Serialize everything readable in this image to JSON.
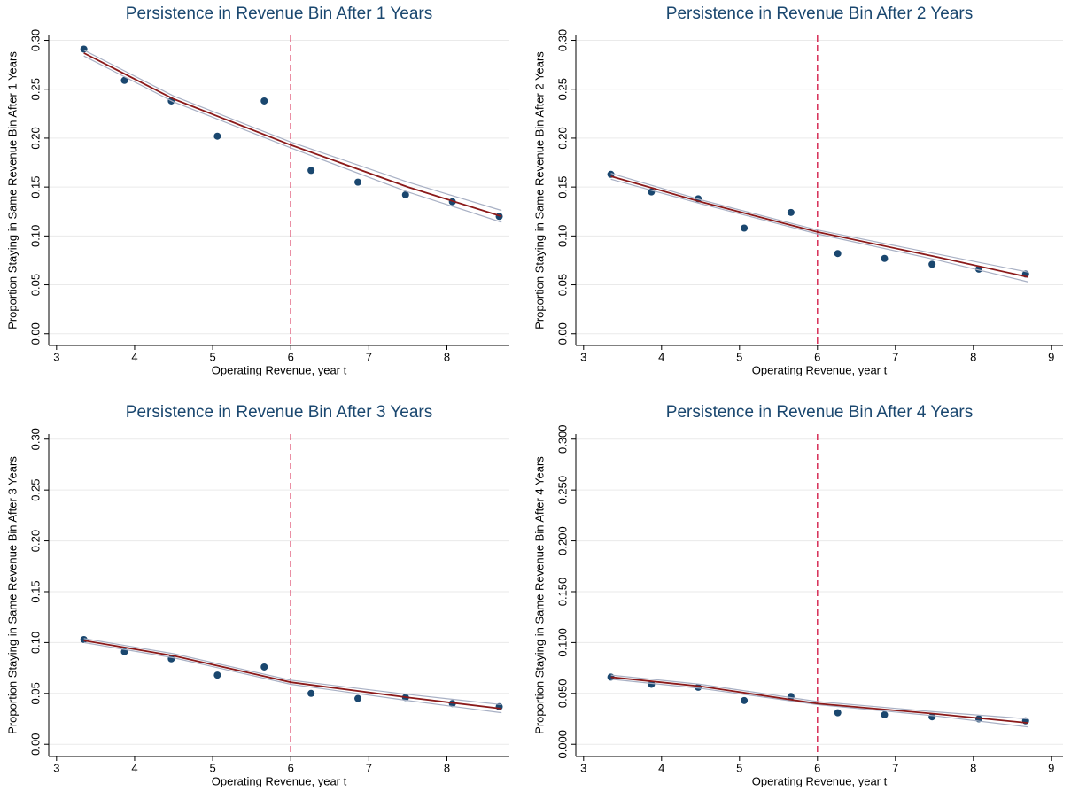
{
  "chart_data": [
    {
      "type": "scatter",
      "title": "Persistence in Revenue Bin After 1 Years",
      "x_label": "Operating Revenue, year t",
      "y_label": "Proportion Staying in Same Revenue Bin After 1 Years",
      "xlim": [
        2.9,
        8.8
      ],
      "ylim": [
        -0.012,
        0.305
      ],
      "xticks": [
        3,
        4,
        5,
        6,
        7,
        8
      ],
      "yticks": [
        {
          "value": 0,
          "label": "0.00"
        },
        {
          "value": 0.05,
          "label": "0.05"
        },
        {
          "value": 0.1,
          "label": "0.10"
        },
        {
          "value": 0.15,
          "label": "0.15"
        },
        {
          "value": 0.2,
          "label": "0.20"
        },
        {
          "value": 0.25,
          "label": "0.25"
        },
        {
          "value": 0.3,
          "label": "0.30"
        }
      ],
      "grid": true,
      "vline": 6,
      "vline_color": "#d62d55",
      "series": [
        {
          "style": "scatter",
          "color": "#1a476f",
          "x": [
            3.35,
            3.87,
            4.47,
            5.06,
            5.66,
            6.26,
            6.86,
            7.47,
            8.07,
            8.67
          ],
          "values": [
            0.291,
            0.259,
            0.238,
            0.202,
            0.238,
            0.167,
            0.155,
            0.142,
            0.135,
            0.12
          ]
        },
        {
          "style": "ci",
          "color": "#a8b0c4",
          "x": [
            3.35,
            4.5,
            6,
            7.5,
            8.7
          ],
          "values": [
            0.29,
            0.243,
            0.196,
            0.155,
            0.126
          ]
        },
        {
          "style": "ci",
          "color": "#a8b0c4",
          "x": [
            3.35,
            4.5,
            6,
            7.5,
            8.7
          ],
          "values": [
            0.284,
            0.237,
            0.19,
            0.145,
            0.114
          ]
        },
        {
          "style": "line",
          "color": "#8b1a1a",
          "x": [
            3.35,
            4.5,
            6,
            7.5,
            8.7
          ],
          "values": [
            0.287,
            0.24,
            0.193,
            0.15,
            0.12
          ]
        }
      ]
    },
    {
      "type": "scatter",
      "title": "Persistence in Revenue Bin After 2 Years",
      "x_label": "Operating Revenue, year t",
      "y_label": "Proportion Staying in Same Revenue Bin After 2 Years",
      "xlim": [
        2.9,
        9.15
      ],
      "ylim": [
        -0.012,
        0.305
      ],
      "xticks": [
        3,
        4,
        5,
        6,
        7,
        8,
        9
      ],
      "yticks": [
        {
          "value": 0,
          "label": "0.00"
        },
        {
          "value": 0.05,
          "label": "0.05"
        },
        {
          "value": 0.1,
          "label": "0.10"
        },
        {
          "value": 0.15,
          "label": "0.15"
        },
        {
          "value": 0.2,
          "label": "0.20"
        },
        {
          "value": 0.25,
          "label": "0.25"
        },
        {
          "value": 0.3,
          "label": "0.30"
        }
      ],
      "grid": true,
      "vline": 6,
      "vline_color": "#d62d55",
      "series": [
        {
          "style": "scatter",
          "color": "#1a476f",
          "x": [
            3.35,
            3.87,
            4.47,
            5.06,
            5.66,
            6.26,
            6.86,
            7.47,
            8.07,
            8.67
          ],
          "values": [
            0.163,
            0.145,
            0.138,
            0.108,
            0.124,
            0.082,
            0.077,
            0.071,
            0.066,
            0.061
          ]
        },
        {
          "style": "ci",
          "color": "#a8b0c4",
          "x": [
            3.35,
            4.5,
            6,
            7.5,
            8.7
          ],
          "values": [
            0.164,
            0.137,
            0.106,
            0.082,
            0.063
          ]
        },
        {
          "style": "ci",
          "color": "#a8b0c4",
          "x": [
            3.35,
            4.5,
            6,
            7.5,
            8.7
          ],
          "values": [
            0.158,
            0.133,
            0.102,
            0.076,
            0.053
          ]
        },
        {
          "style": "line",
          "color": "#8b1a1a",
          "x": [
            3.35,
            4.5,
            6,
            7.5,
            8.7
          ],
          "values": [
            0.161,
            0.135,
            0.104,
            0.079,
            0.058
          ]
        }
      ]
    },
    {
      "type": "scatter",
      "title": "Persistence in Revenue Bin After 3 Years",
      "x_label": "Operating Revenue, year t",
      "y_label": "Proportion Staying in Same Revenue Bin After 3 Years",
      "xlim": [
        2.9,
        8.8
      ],
      "ylim": [
        -0.012,
        0.305
      ],
      "xticks": [
        3,
        4,
        5,
        6,
        7,
        8
      ],
      "yticks": [
        {
          "value": 0,
          "label": "0.00"
        },
        {
          "value": 0.05,
          "label": "0.05"
        },
        {
          "value": 0.1,
          "label": "0.10"
        },
        {
          "value": 0.15,
          "label": "0.15"
        },
        {
          "value": 0.2,
          "label": "0.20"
        },
        {
          "value": 0.25,
          "label": "0.25"
        },
        {
          "value": 0.3,
          "label": "0.30"
        }
      ],
      "grid": true,
      "vline": 6,
      "vline_color": "#d62d55",
      "series": [
        {
          "style": "scatter",
          "color": "#1a476f",
          "x": [
            3.35,
            3.87,
            4.47,
            5.06,
            5.66,
            6.26,
            6.86,
            7.47,
            8.07,
            8.67
          ],
          "values": [
            0.103,
            0.091,
            0.084,
            0.068,
            0.076,
            0.05,
            0.045,
            0.046,
            0.04,
            0.037
          ]
        },
        {
          "style": "ci",
          "color": "#a8b0c4",
          "x": [
            3.35,
            4.5,
            6,
            7.5,
            8.7
          ],
          "values": [
            0.104,
            0.089,
            0.063,
            0.049,
            0.039
          ]
        },
        {
          "style": "ci",
          "color": "#a8b0c4",
          "x": [
            3.35,
            4.5,
            6,
            7.5,
            8.7
          ],
          "values": [
            0.1,
            0.085,
            0.059,
            0.043,
            0.031
          ]
        },
        {
          "style": "line",
          "color": "#8b1a1a",
          "x": [
            3.35,
            4.5,
            6,
            7.5,
            8.7
          ],
          "values": [
            0.102,
            0.087,
            0.061,
            0.046,
            0.035
          ]
        }
      ]
    },
    {
      "type": "scatter",
      "title": "Persistence in Revenue Bin After 4 Years",
      "x_label": "Operating Revenue, year t",
      "y_label": "Proportion Staying in Same Revenue Bin After 4 Years",
      "xlim": [
        2.9,
        9.15
      ],
      "ylim": [
        -0.012,
        0.305
      ],
      "xticks": [
        3,
        4,
        5,
        6,
        7,
        8,
        9
      ],
      "yticks": [
        {
          "value": 0,
          "label": "0.000"
        },
        {
          "value": 0.05,
          "label": "0.050"
        },
        {
          "value": 0.1,
          "label": "0.100"
        },
        {
          "value": 0.15,
          "label": "0.150"
        },
        {
          "value": 0.2,
          "label": "0.200"
        },
        {
          "value": 0.25,
          "label": "0.250"
        },
        {
          "value": 0.3,
          "label": "0.300"
        }
      ],
      "grid": true,
      "vline": 6,
      "vline_color": "#d62d55",
      "series": [
        {
          "style": "scatter",
          "color": "#1a476f",
          "x": [
            3.35,
            3.87,
            4.47,
            5.06,
            5.66,
            6.26,
            6.86,
            7.47,
            8.07,
            8.67
          ],
          "values": [
            0.066,
            0.059,
            0.056,
            0.043,
            0.047,
            0.031,
            0.029,
            0.027,
            0.025,
            0.023
          ]
        },
        {
          "style": "ci",
          "color": "#a8b0c4",
          "x": [
            3.35,
            4.5,
            6,
            7.5,
            8.7
          ],
          "values": [
            0.068,
            0.059,
            0.042,
            0.032,
            0.025
          ]
        },
        {
          "style": "ci",
          "color": "#a8b0c4",
          "x": [
            3.35,
            4.5,
            6,
            7.5,
            8.7
          ],
          "values": [
            0.064,
            0.055,
            0.039,
            0.028,
            0.017
          ]
        },
        {
          "style": "line",
          "color": "#8b1a1a",
          "x": [
            3.35,
            4.5,
            6,
            7.5,
            8.7
          ],
          "values": [
            0.066,
            0.057,
            0.04,
            0.03,
            0.021
          ]
        }
      ]
    }
  ]
}
